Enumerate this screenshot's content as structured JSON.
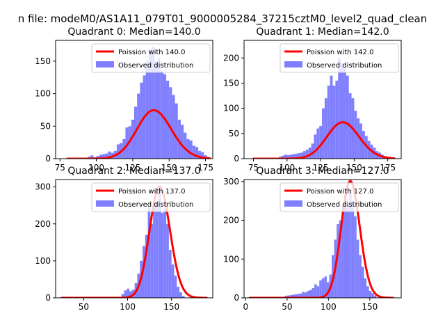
{
  "figure": {
    "suptitle": "n file: modeM0/AS1A11_079T01_9000005284_37215cztM0_level2_quad_clean"
  },
  "colors": {
    "hist": "#8080ff",
    "curve": "#ff0000",
    "axes": "#000000",
    "background": "#ffffff"
  },
  "chart_data": [
    {
      "type": "bar",
      "title": "Quadrant 0: Median=140.0",
      "xlim": [
        72,
        180
      ],
      "ylim": [
        0,
        182
      ],
      "xticks": [
        75,
        100,
        125,
        150,
        175
      ],
      "yticks": [
        0,
        50,
        100,
        150
      ],
      "bin_width": 2,
      "hist": [
        [
          95,
          3
        ],
        [
          97,
          5
        ],
        [
          99,
          2
        ],
        [
          101,
          4
        ],
        [
          103,
          6
        ],
        [
          105,
          7
        ],
        [
          107,
          8
        ],
        [
          109,
          11
        ],
        [
          111,
          9
        ],
        [
          113,
          12
        ],
        [
          115,
          22
        ],
        [
          117,
          24
        ],
        [
          119,
          30
        ],
        [
          121,
          48
        ],
        [
          123,
          50
        ],
        [
          125,
          60
        ],
        [
          127,
          80
        ],
        [
          129,
          100
        ],
        [
          131,
          117
        ],
        [
          133,
          128
        ],
        [
          135,
          150
        ],
        [
          137,
          168
        ],
        [
          139,
          172
        ],
        [
          141,
          150
        ],
        [
          143,
          155
        ],
        [
          145,
          135
        ],
        [
          147,
          130
        ],
        [
          149,
          120
        ],
        [
          151,
          110
        ],
        [
          153,
          98
        ],
        [
          155,
          85
        ],
        [
          157,
          60
        ],
        [
          159,
          52
        ],
        [
          161,
          40
        ],
        [
          163,
          30
        ],
        [
          165,
          28
        ],
        [
          167,
          20
        ],
        [
          169,
          18
        ],
        [
          171,
          12
        ],
        [
          173,
          10
        ],
        [
          175,
          5
        ]
      ],
      "poisson_lambda": 140.0,
      "poisson_scale": 2210,
      "curve_x": [
        80,
        178
      ],
      "legend": [
        "Poission with 140.0",
        "Observed distribution"
      ],
      "legend_loc": "upper right"
    },
    {
      "type": "bar",
      "title": "Quadrant 1: Median=142.0",
      "xlim": [
        68,
        185
      ],
      "ylim": [
        0,
        235
      ],
      "xticks": [
        75,
        100,
        125,
        150,
        175
      ],
      "yticks": [
        0,
        50,
        100,
        150,
        200
      ],
      "bin_width": 2,
      "hist": [
        [
          95,
          4
        ],
        [
          97,
          6
        ],
        [
          99,
          8
        ],
        [
          101,
          7
        ],
        [
          103,
          8
        ],
        [
          105,
          9
        ],
        [
          107,
          10
        ],
        [
          109,
          11
        ],
        [
          111,
          12
        ],
        [
          113,
          15
        ],
        [
          115,
          18
        ],
        [
          117,
          22
        ],
        [
          119,
          30
        ],
        [
          121,
          48
        ],
        [
          123,
          60
        ],
        [
          125,
          65
        ],
        [
          127,
          100
        ],
        [
          129,
          120
        ],
        [
          131,
          145
        ],
        [
          133,
          165
        ],
        [
          135,
          145
        ],
        [
          137,
          155
        ],
        [
          139,
          200
        ],
        [
          141,
          190
        ],
        [
          143,
          180
        ],
        [
          145,
          165
        ],
        [
          147,
          130
        ],
        [
          149,
          120
        ],
        [
          151,
          95
        ],
        [
          153,
          80
        ],
        [
          155,
          70
        ],
        [
          157,
          55
        ],
        [
          159,
          45
        ],
        [
          161,
          35
        ],
        [
          163,
          28
        ],
        [
          165,
          22
        ],
        [
          167,
          15
        ],
        [
          169,
          12
        ],
        [
          171,
          8
        ],
        [
          173,
          5
        ]
      ],
      "poisson_lambda": 142.0,
      "poisson_scale": 2160,
      "curve_x": [
        75,
        180
      ],
      "legend": [
        "Poission with 142.0",
        "Observed distribution"
      ],
      "legend_loc": "upper right"
    },
    {
      "type": "bar",
      "title": "Quadrant 2: Median=137.0",
      "xlim": [
        18,
        197
      ],
      "ylim": [
        0,
        320
      ],
      "xticks": [
        50,
        100,
        150
      ],
      "yticks": [
        0,
        100,
        200,
        300
      ],
      "bin_width": 3,
      "hist": [
        [
          94.5,
          10
        ],
        [
          97.5,
          20
        ],
        [
          100.5,
          25
        ],
        [
          103.5,
          18
        ],
        [
          106.5,
          22
        ],
        [
          109.5,
          40
        ],
        [
          112.5,
          65
        ],
        [
          115.5,
          100
        ],
        [
          118.5,
          140
        ],
        [
          121.5,
          170
        ],
        [
          124.5,
          245
        ],
        [
          127.5,
          200
        ],
        [
          130.5,
          260
        ],
        [
          133.5,
          250
        ],
        [
          136.5,
          305
        ],
        [
          139.5,
          230
        ],
        [
          142.5,
          240
        ],
        [
          145.5,
          200
        ],
        [
          148.5,
          130
        ],
        [
          151.5,
          90
        ],
        [
          154.5,
          60
        ],
        [
          157.5,
          30
        ],
        [
          160.5,
          15
        ],
        [
          163.5,
          5
        ]
      ],
      "poisson_lambda": 137.0,
      "poisson_scale": 8800,
      "curve_x": [
        25,
        190
      ],
      "legend": [
        "Poission with 137.0",
        "Observed distribution"
      ],
      "legend_loc": "upper right"
    },
    {
      "type": "bar",
      "title": "Quadrant 3: Median=127.0",
      "xlim": [
        -2,
        188
      ],
      "ylim": [
        0,
        305
      ],
      "xticks": [
        0,
        50,
        100,
        150
      ],
      "yticks": [
        0,
        100,
        200,
        300
      ],
      "bin_width": 3,
      "hist": [
        [
          48.5,
          5
        ],
        [
          51.5,
          6
        ],
        [
          54.5,
          7
        ],
        [
          57.5,
          8
        ],
        [
          60.5,
          9
        ],
        [
          63.5,
          10
        ],
        [
          66.5,
          11
        ],
        [
          69.5,
          15
        ],
        [
          72.5,
          14
        ],
        [
          75.5,
          18
        ],
        [
          78.5,
          20
        ],
        [
          81.5,
          25
        ],
        [
          84.5,
          35
        ],
        [
          87.5,
          30
        ],
        [
          90.5,
          45
        ],
        [
          93.5,
          50
        ],
        [
          96.5,
          55
        ],
        [
          99.5,
          40
        ],
        [
          102.5,
          60
        ],
        [
          105.5,
          110
        ],
        [
          108.5,
          150
        ],
        [
          111.5,
          190
        ],
        [
          114.5,
          200
        ],
        [
          117.5,
          240
        ],
        [
          120.5,
          265
        ],
        [
          123.5,
          240
        ],
        [
          126.5,
          280
        ],
        [
          129.5,
          250
        ],
        [
          132.5,
          210
        ],
        [
          135.5,
          150
        ],
        [
          138.5,
          110
        ],
        [
          141.5,
          80
        ],
        [
          144.5,
          50
        ],
        [
          147.5,
          30
        ],
        [
          150.5,
          18
        ],
        [
          153.5,
          12
        ],
        [
          156.5,
          6
        ]
      ],
      "poisson_lambda": 127.0,
      "poisson_scale": 8500,
      "curve_x": [
        5,
        178
      ],
      "legend": [
        "Poission with 127.0",
        "Observed distribution"
      ],
      "legend_loc": "upper right"
    }
  ]
}
